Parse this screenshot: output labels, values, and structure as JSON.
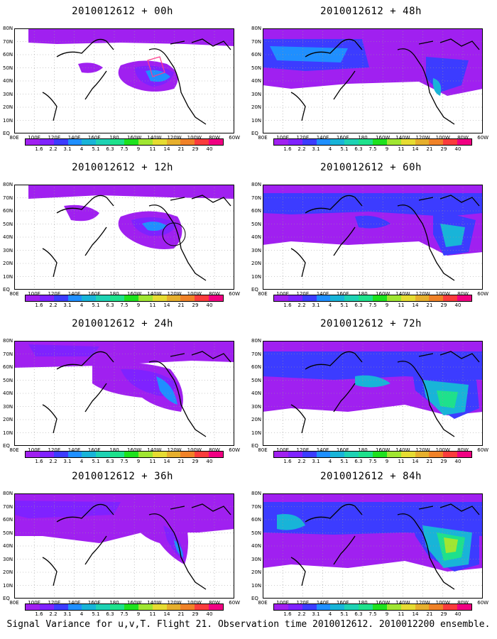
{
  "panels": [
    {
      "title": "2010012612 + 00h"
    },
    {
      "title": "2010012612 + 48h"
    },
    {
      "title": "2010012612 + 12h"
    },
    {
      "title": "2010012612 + 60h"
    },
    {
      "title": "2010012612 + 24h"
    },
    {
      "title": "2010012612 + 72h"
    },
    {
      "title": "2010012612 + 36h"
    },
    {
      "title": "2010012612 + 84h"
    }
  ],
  "lat_labels": [
    "80N",
    "70N",
    "60N",
    "50N",
    "40N",
    "30N",
    "20N",
    "10N",
    "EQ"
  ],
  "lon_labels": [
    "80E",
    "100E",
    "120E",
    "140E",
    "160E",
    "180",
    "160W",
    "140W",
    "120W",
    "100W",
    "80W",
    "60W"
  ],
  "colorbar": {
    "labels": [
      "1.6",
      "2.2",
      "3.1",
      "4",
      "5.1",
      "6.3",
      "7.5",
      "9",
      "11",
      "14",
      "21",
      "29",
      "40"
    ],
    "colors": [
      "#a020f0",
      "#7f22ff",
      "#3c3cff",
      "#1f8fff",
      "#18b4d8",
      "#1ed2b4",
      "#1ee18c",
      "#1ee11e",
      "#a0e632",
      "#e6dc32",
      "#e6af2d",
      "#f08228",
      "#fa3c3c",
      "#f00082"
    ]
  },
  "caption": "Signal Variance for u,v,T. Flight 21. Observation time 2010012612. 2010012200 ensemble."
}
